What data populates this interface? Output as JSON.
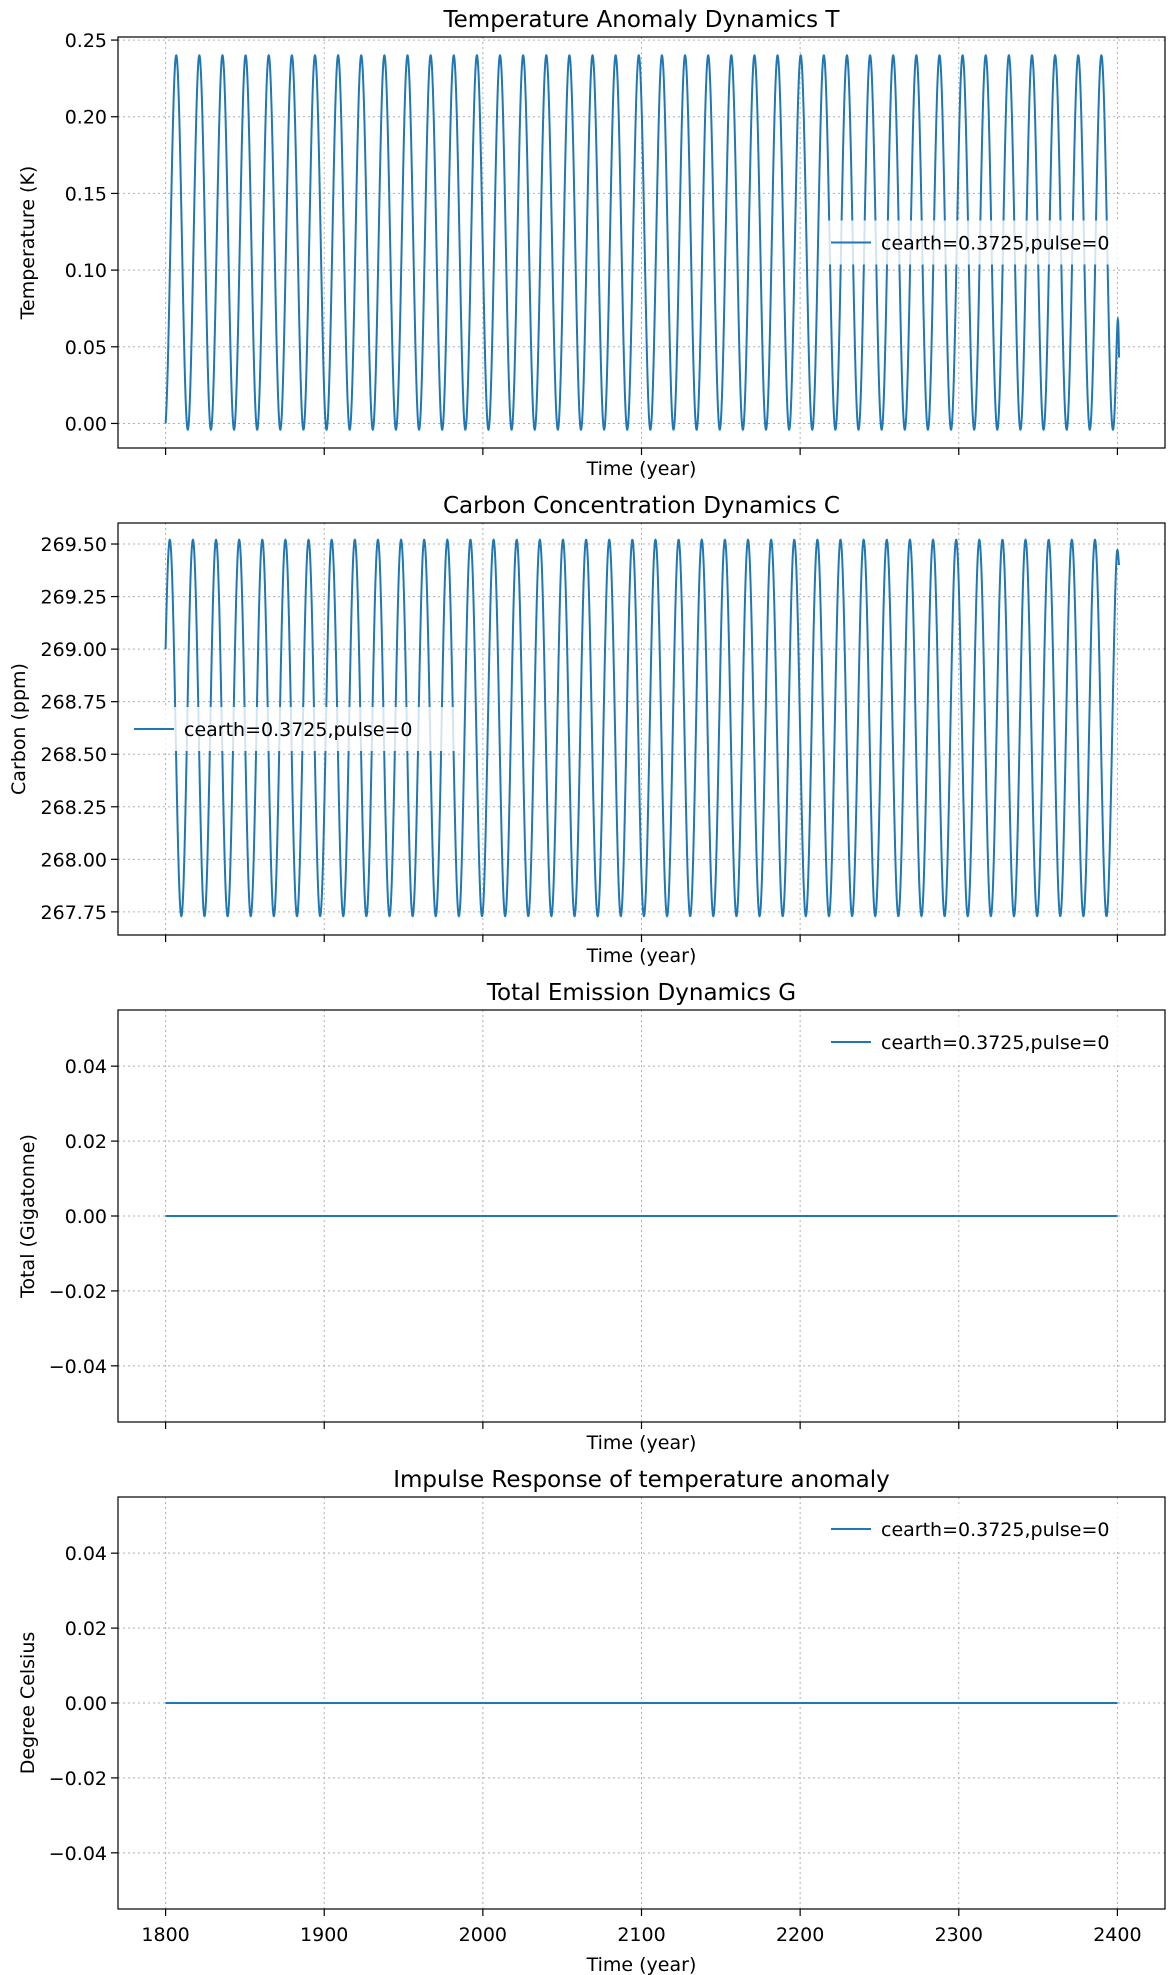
{
  "chart_data": [
    {
      "type": "line",
      "title": "Temperature Anomaly Dynamics T",
      "xlabel": "Time (year)",
      "ylabel": "Temperature (K)",
      "xlim": [
        1770,
        2430
      ],
      "ylim": [
        -0.016,
        0.252
      ],
      "xticks": [
        1800,
        1900,
        2000,
        2100,
        2200,
        2300,
        2400
      ],
      "show_xticklabels": false,
      "yticks": [
        0.0,
        0.05,
        0.1,
        0.15,
        0.2,
        0.25
      ],
      "ytick_labels": [
        "0.00",
        "0.05",
        "0.10",
        "0.15",
        "0.20",
        "0.25"
      ],
      "grid": true,
      "legend_position": "center-right",
      "series": [
        {
          "name": "cearth=0.3725,pulse=0",
          "color": "#1f77b4",
          "wave": {
            "x_start": 1800,
            "x_end": 2401,
            "start": 0.0,
            "max": 0.24,
            "min": -0.004,
            "period_years": 14.58,
            "start_phase": "rising",
            "end_value": 0.043
          }
        }
      ]
    },
    {
      "type": "line",
      "title": "Carbon Concentration Dynamics C",
      "xlabel": "Time (year)",
      "ylabel": "Carbon (ppm)",
      "xlim": [
        1770,
        2430
      ],
      "ylim": [
        267.64,
        269.6
      ],
      "xticks": [
        1800,
        1900,
        2000,
        2100,
        2200,
        2300,
        2400
      ],
      "show_xticklabels": false,
      "yticks": [
        267.75,
        268.0,
        268.25,
        268.5,
        268.75,
        269.0,
        269.25,
        269.5
      ],
      "ytick_labels": [
        "267.75",
        "268.00",
        "268.25",
        "268.50",
        "268.75",
        "269.00",
        "269.25",
        "269.50"
      ],
      "grid": true,
      "legend_position": "center-left",
      "series": [
        {
          "name": "cearth=0.3725,pulse=0",
          "color": "#1f77b4",
          "wave": {
            "x_start": 1800,
            "x_end": 2401,
            "start": 269.0,
            "max": 269.52,
            "min": 267.73,
            "period_years": 14.58,
            "start_phase": "rising",
            "end_value": 269.4
          }
        }
      ]
    },
    {
      "type": "line",
      "title": "Total Emission Dynamics G",
      "xlabel": "Time (year)",
      "ylabel": "Total (Gigatonne)",
      "xlim": [
        1770,
        2430
      ],
      "ylim": [
        -0.055,
        0.055
      ],
      "xticks": [
        1800,
        1900,
        2000,
        2100,
        2200,
        2300,
        2400
      ],
      "show_xticklabels": false,
      "yticks": [
        -0.04,
        -0.02,
        0.0,
        0.02,
        0.04
      ],
      "ytick_labels": [
        "−0.04",
        "−0.02",
        "0.00",
        "0.02",
        "0.04"
      ],
      "grid": true,
      "legend_position": "top-right",
      "series": [
        {
          "name": "cearth=0.3725,pulse=0",
          "color": "#1f77b4",
          "x": [
            1800,
            2400
          ],
          "y": [
            0.0,
            0.0
          ]
        }
      ]
    },
    {
      "type": "line",
      "title": "Impulse Response of temperature anomaly",
      "xlabel": "Time (year)",
      "ylabel": "Degree Celsius",
      "xlim": [
        1770,
        2430
      ],
      "ylim": [
        -0.055,
        0.055
      ],
      "xticks": [
        1800,
        1900,
        2000,
        2100,
        2200,
        2300,
        2400
      ],
      "xtick_labels": [
        "1800",
        "1900",
        "2000",
        "2100",
        "2200",
        "2300",
        "2400"
      ],
      "show_xticklabels": true,
      "yticks": [
        -0.04,
        -0.02,
        0.0,
        0.02,
        0.04
      ],
      "ytick_labels": [
        "−0.04",
        "−0.02",
        "0.00",
        "0.02",
        "0.04"
      ],
      "grid": true,
      "legend_position": "top-right",
      "series": [
        {
          "name": "cearth=0.3725,pulse=0",
          "color": "#1f77b4",
          "x": [
            1800,
            2400
          ],
          "y": [
            0.0,
            0.0
          ]
        }
      ]
    }
  ]
}
